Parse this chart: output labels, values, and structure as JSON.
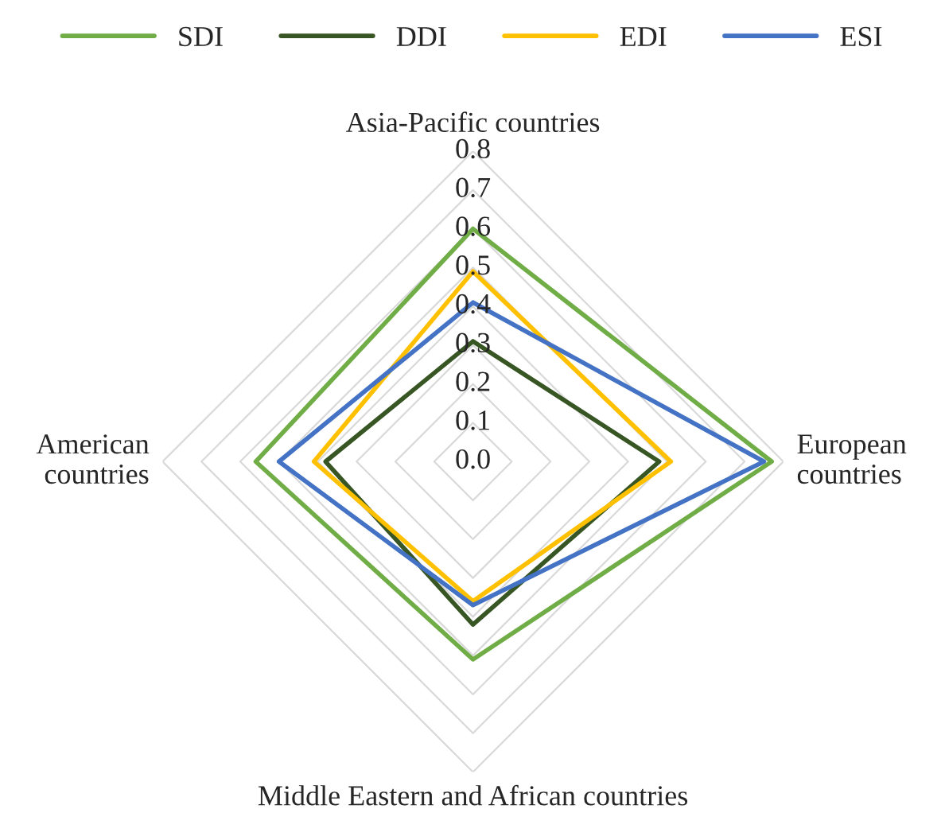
{
  "chart_data": {
    "type": "radar",
    "categories": [
      "Asia-Pacific countries",
      "European\ncountries",
      "Middle Eastern and African countries",
      "American\ncountries"
    ],
    "series": [
      {
        "name": "SDI",
        "color": "#70ad47",
        "values": [
          0.6,
          0.77,
          0.51,
          0.56
        ]
      },
      {
        "name": "DDI",
        "color": "#375623",
        "values": [
          0.31,
          0.48,
          0.42,
          0.38
        ]
      },
      {
        "name": "EDI",
        "color": "#ffc000",
        "values": [
          0.49,
          0.51,
          0.36,
          0.41
        ]
      },
      {
        "name": "ESI",
        "color": "#4472c4",
        "values": [
          0.41,
          0.75,
          0.37,
          0.5
        ]
      }
    ],
    "ylim": [
      0,
      0.8
    ],
    "yticks": [
      {
        "value": 0,
        "label": "0.0"
      },
      0.1,
      0.2,
      0.3,
      0.4,
      0.5,
      0.6,
      0.7,
      0.8
    ],
    "grid": true,
    "legend": "top",
    "marker": "none",
    "line_style": "solid"
  }
}
